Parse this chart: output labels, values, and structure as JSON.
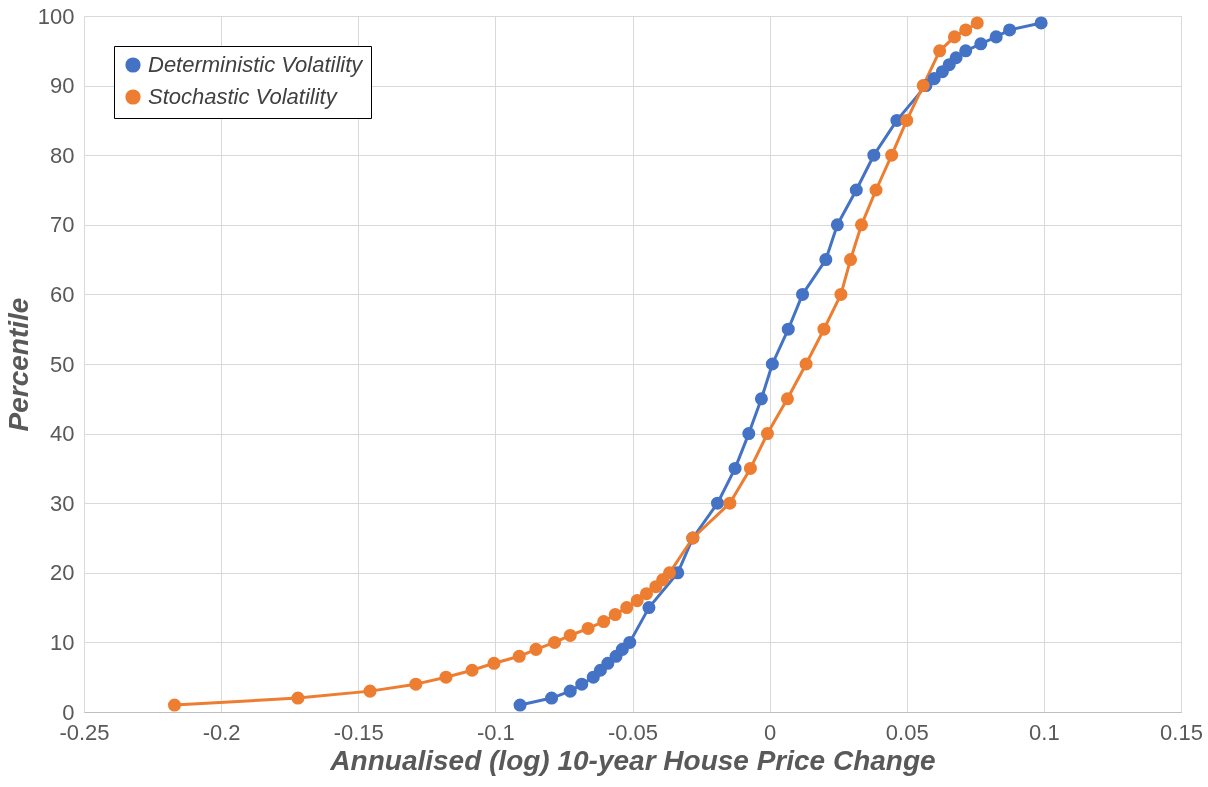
{
  "chart_data": {
    "type": "line",
    "xlabel": "Annualised (log) 10-year House Price Change",
    "ylabel": "Percentile",
    "xlim": [
      -0.25,
      0.15
    ],
    "xticks": [
      -0.25,
      -0.2,
      -0.15,
      -0.1,
      -0.05,
      0,
      0.05,
      0.1,
      0.15
    ],
    "ylim": [
      0,
      100
    ],
    "yticks": [
      0,
      10,
      20,
      30,
      40,
      50,
      60,
      70,
      80,
      90,
      100
    ],
    "grid": true,
    "legend": "top left",
    "marker": "circle",
    "line_style": "solid",
    "series": [
      {
        "name": "Deterministic Volatility",
        "color": "#4472c4",
        "x": [
          -0.091,
          -0.0795,
          -0.0727,
          -0.0685,
          -0.0643,
          -0.0617,
          -0.059,
          -0.056,
          -0.0537,
          -0.051,
          -0.044,
          -0.0335,
          -0.028,
          -0.019,
          -0.0126,
          -0.0076,
          -0.003,
          0.001,
          0.0068,
          0.012,
          0.0205,
          0.0247,
          0.0316,
          0.038,
          0.0464,
          0.057,
          0.06,
          0.063,
          0.0655,
          0.068,
          0.0715,
          0.077,
          0.0826,
          0.0875,
          0.099
        ],
        "values": [
          1,
          2,
          3,
          4,
          5,
          6,
          7,
          8,
          9,
          10,
          15,
          20,
          25,
          30,
          35,
          40,
          45,
          50,
          55,
          60,
          65,
          70,
          75,
          80,
          85,
          90,
          91,
          92,
          93,
          94,
          95,
          96,
          97,
          98,
          99
        ]
      },
      {
        "name": "Stochastic Volatility",
        "color": "#ed7d31",
        "x": [
          -0.217,
          -0.172,
          -0.1457,
          -0.129,
          -0.118,
          -0.1085,
          -0.1005,
          -0.0913,
          -0.0852,
          -0.0784,
          -0.0727,
          -0.0662,
          -0.0605,
          -0.0563,
          -0.0521,
          -0.0483,
          -0.0449,
          -0.0415,
          -0.039,
          -0.0365,
          -0.028,
          -0.0145,
          -0.007,
          -0.0008,
          0.0065,
          0.0133,
          0.0198,
          0.026,
          0.0295,
          0.0335,
          0.0388,
          0.0445,
          0.05,
          0.056,
          0.062,
          0.0674,
          0.0715,
          0.0757
        ],
        "values": [
          1,
          2,
          3,
          4,
          5,
          6,
          7,
          8,
          9,
          10,
          11,
          12,
          13,
          14,
          15,
          16,
          17,
          18,
          19,
          20,
          25,
          30,
          35,
          40,
          45,
          50,
          55,
          60,
          65,
          70,
          75,
          80,
          85,
          90,
          95,
          97,
          98,
          99
        ]
      }
    ]
  }
}
